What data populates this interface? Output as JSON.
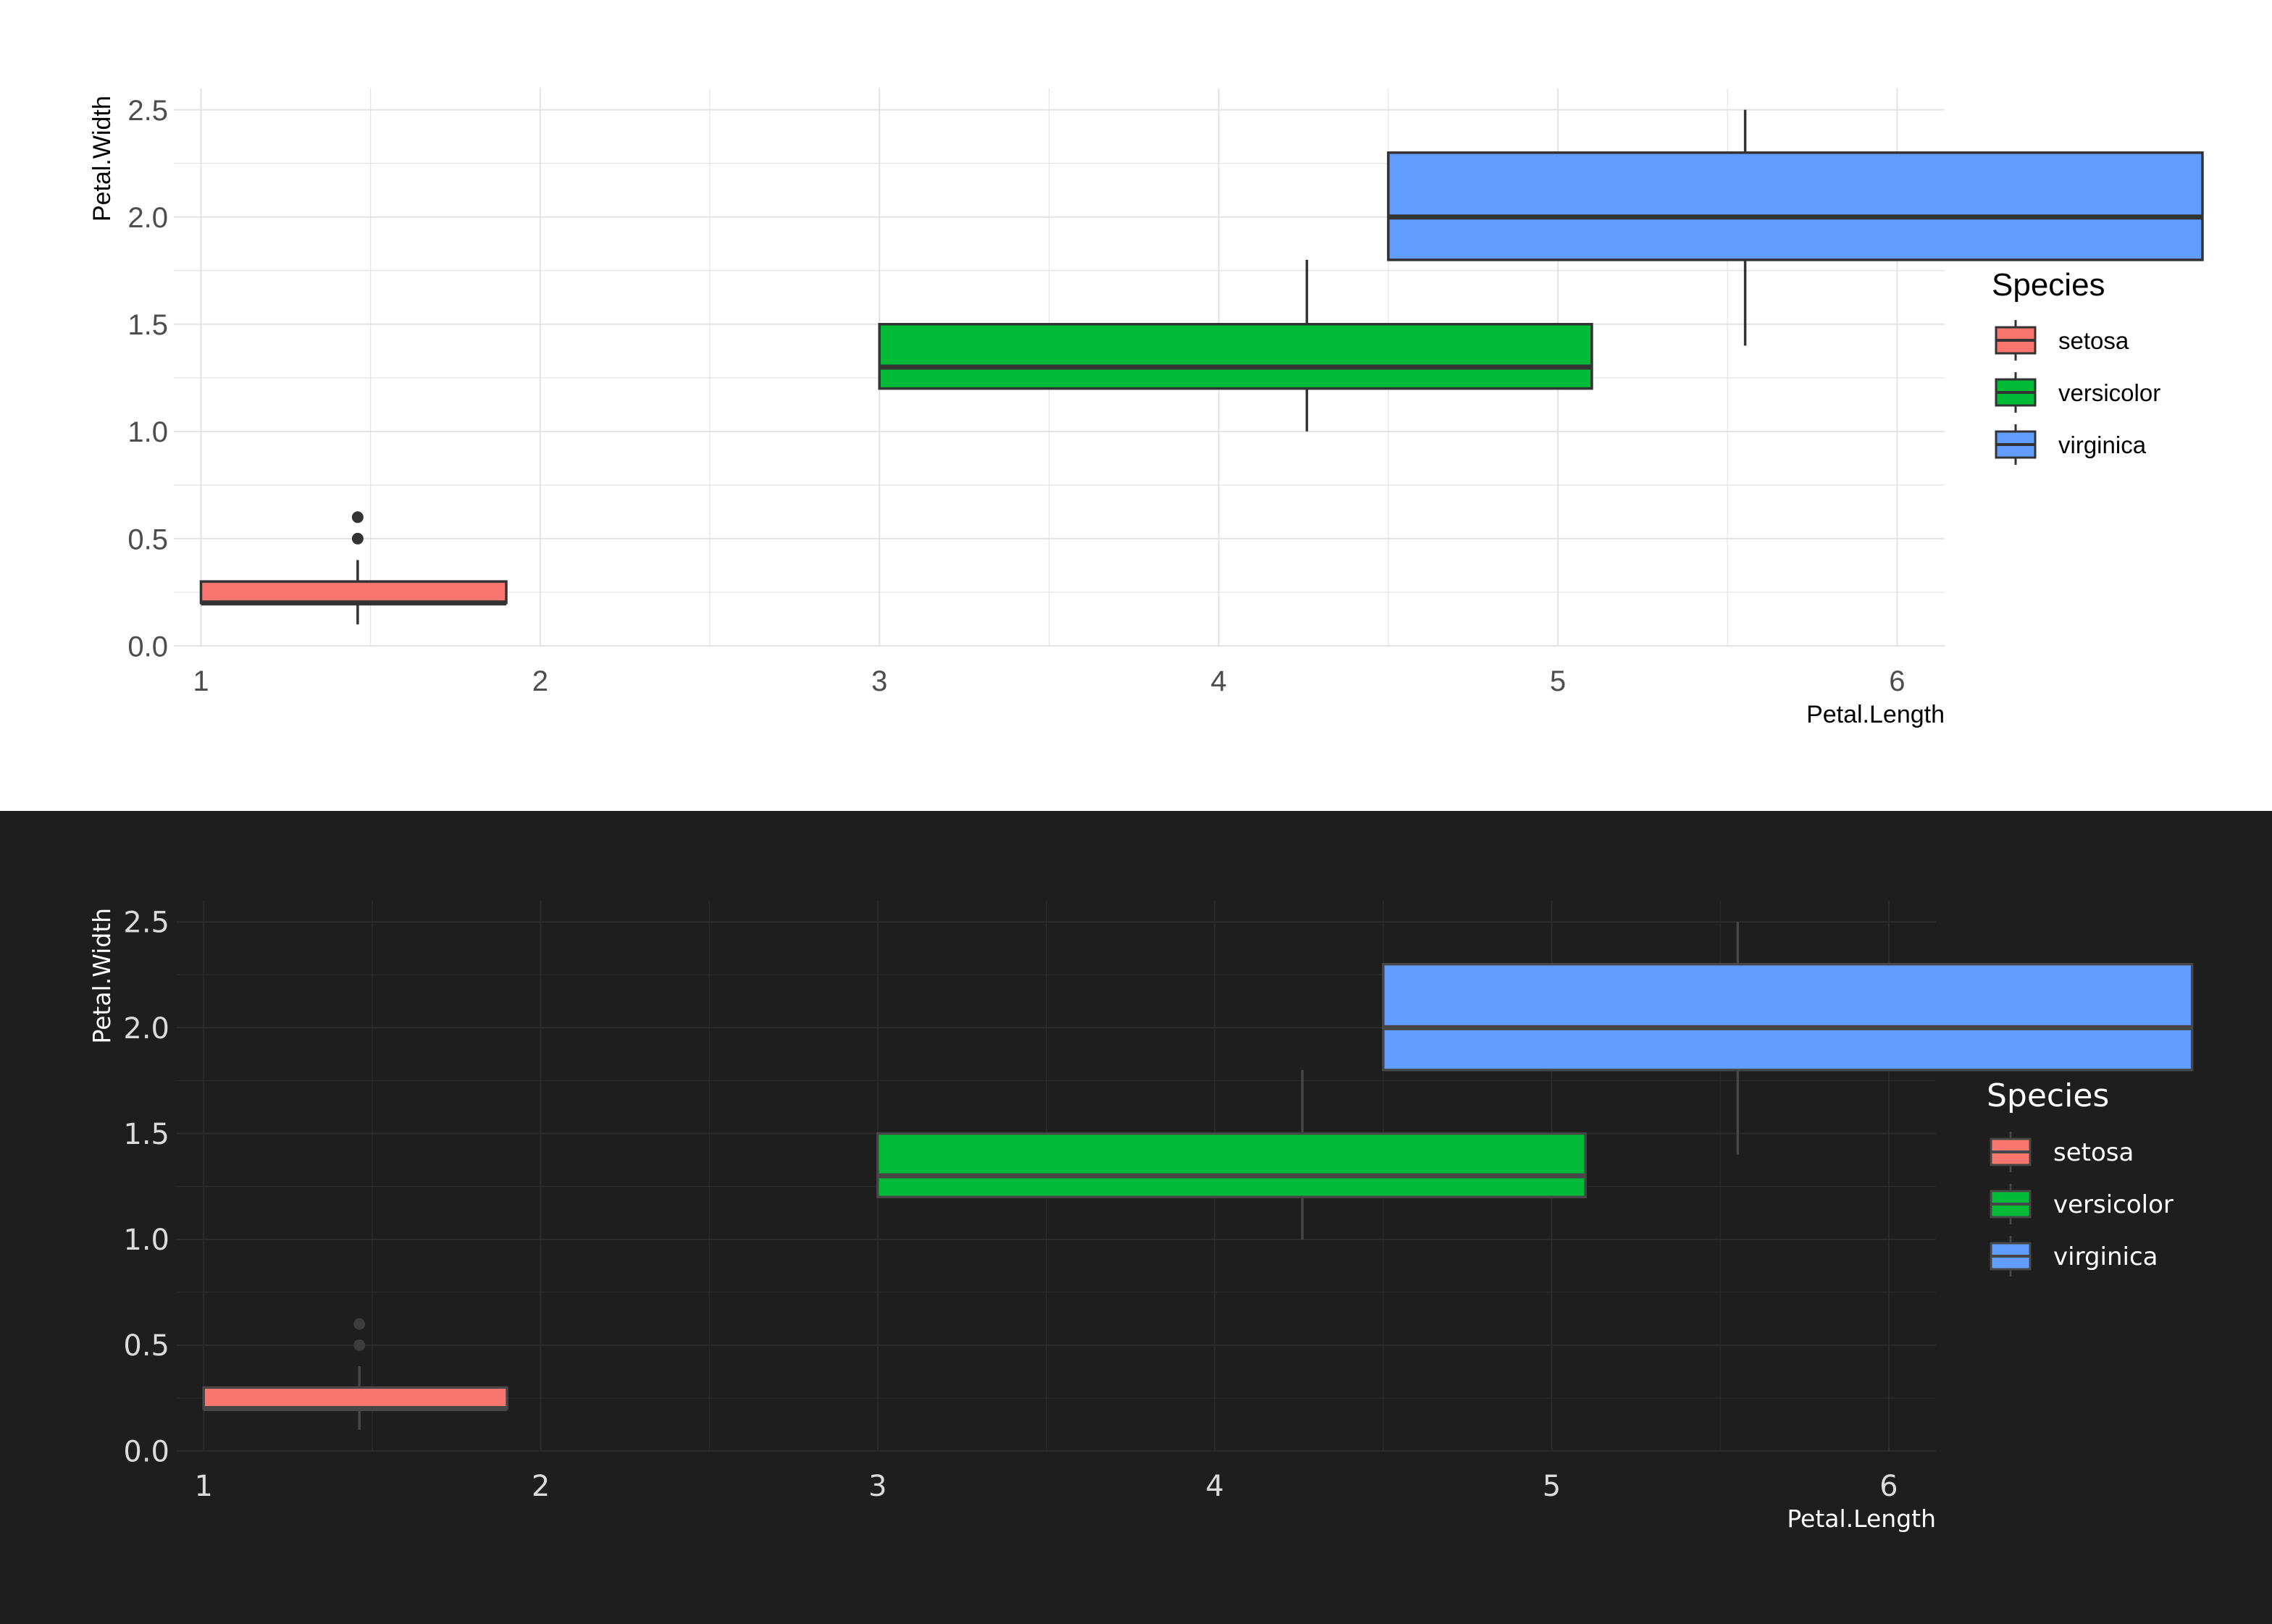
{
  "charts": [
    {
      "theme": "light",
      "colors": {
        "background": "#ffffff",
        "grid": "#e3e3e3",
        "text": "#4d4d4d",
        "title_text": "#000000",
        "box_border": "#333333",
        "whisker": "#333333",
        "outlier": "#333333"
      }
    },
    {
      "theme": "dark",
      "colors": {
        "background": "#1e1e1e",
        "grid": "#2b2b2b",
        "text": "#dcdcdc",
        "title_text": "#ffffff",
        "box_border": "#464646",
        "whisker": "#464646",
        "outlier": "#3c3c3c"
      }
    }
  ],
  "chart_data": {
    "type": "boxplot",
    "xlabel": "Petal.Length",
    "ylabel": "Petal.Width",
    "xlim": [
      0.92,
      6.14
    ],
    "ylim": [
      0,
      2.6
    ],
    "x_ticks": [
      1,
      2,
      3,
      4,
      5,
      6
    ],
    "y_ticks": [
      0.0,
      0.5,
      1.0,
      1.5,
      2.0,
      2.5
    ],
    "y_tick_labels": [
      "0.0",
      "0.5",
      "1.0",
      "1.5",
      "2.0",
      "2.5"
    ],
    "x_minor_grid": [
      1.5,
      2.5,
      3.5,
      4.5,
      5.5
    ],
    "y_minor_grid": [
      0.25,
      0.75,
      1.25,
      1.75,
      2.25
    ],
    "grid": true,
    "legend": {
      "title": "Species",
      "position": "right",
      "entries": [
        "setosa",
        "versicolor",
        "virginica"
      ]
    },
    "series": [
      {
        "name": "setosa",
        "color": "#F8766D",
        "x_min": 1.0,
        "x_max": 1.9,
        "x_center": 1.462,
        "whisker_low": 0.1,
        "q1": 0.2,
        "median": 0.2,
        "q3": 0.3,
        "whisker_high": 0.4,
        "outliers": [
          0.5,
          0.6
        ]
      },
      {
        "name": "versicolor",
        "color": "#00BA38",
        "x_min": 3.0,
        "x_max": 5.1,
        "x_center": 4.26,
        "whisker_low": 1.0,
        "q1": 1.2,
        "median": 1.3,
        "q3": 1.5,
        "whisker_high": 1.8,
        "outliers": []
      },
      {
        "name": "virginica",
        "color": "#619CFF",
        "x_min": 4.5,
        "x_max": 6.9,
        "x_center": 5.552,
        "whisker_low": 1.4,
        "q1": 1.8,
        "median": 2.0,
        "q3": 2.3,
        "whisker_high": 2.5,
        "outliers": []
      }
    ]
  }
}
